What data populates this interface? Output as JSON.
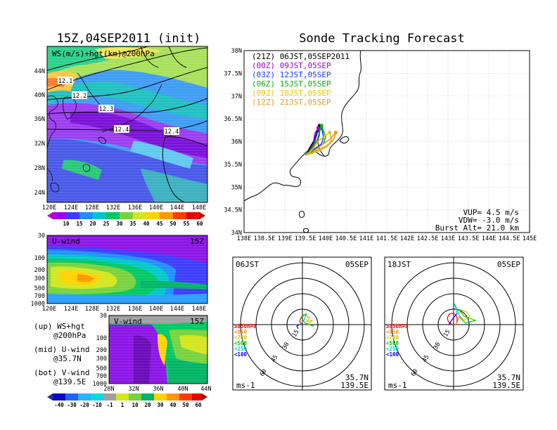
{
  "left_title": "15Z,04SEP2011 (init)",
  "right_title": "Sonde Tracking Forecast",
  "top_panel": {
    "label": "WS(m/s)+hgt(km)@200hPa",
    "ylabels": [
      "44N",
      "40N",
      "36N",
      "32N",
      "28N",
      "24N"
    ],
    "xlabels": [
      "120E",
      "124E",
      "128E",
      "132E",
      "136E",
      "140E",
      "144E",
      "148E"
    ],
    "contour_labels": [
      "12.1",
      "12.2",
      "12.3",
      "12.4",
      "12.4"
    ],
    "colorbar": [
      "10",
      "15",
      "20",
      "25",
      "30",
      "35",
      "40",
      "45",
      "50",
      "55",
      "60"
    ]
  },
  "u_panel": {
    "label": "U-wind",
    "time": "15Z",
    "ylabels": [
      "30",
      "100",
      "200",
      "300",
      "500",
      "700",
      "1000"
    ],
    "xlabels": [
      "120E",
      "124E",
      "128E",
      "132E",
      "136E",
      "140E",
      "144E",
      "148E"
    ]
  },
  "v_panel": {
    "label": "V-wind",
    "time": "15Z",
    "ylabels": [
      "30",
      "100",
      "200",
      "300",
      "500",
      "700",
      "1000"
    ],
    "xlabels": [
      "28N",
      "32N",
      "36N",
      "40N",
      "44N"
    ]
  },
  "legend": [
    {
      "a": "(up) WS+hgt",
      "b": "@200hPa"
    },
    {
      "a": "(mid) U-wind",
      "b": "@35.7N"
    },
    {
      "a": "(bot) V-wind",
      "b": "@139.5E"
    }
  ],
  "v_colorbar": [
    "-40",
    "-30",
    "-20",
    "-10",
    "-1",
    "1",
    "10",
    "20",
    "30",
    "40",
    "50",
    "60"
  ],
  "track_map": {
    "ylabels": [
      "38N",
      "37.5N",
      "37N",
      "36.5N",
      "36N",
      "35.5N",
      "35N",
      "34.5N",
      "34N"
    ],
    "xlabels": [
      "138E",
      "138.5E",
      "139E",
      "139.5E",
      "140E",
      "140.5E",
      "141E",
      "141.5E",
      "142E",
      "142.5E",
      "143E",
      "143.5E",
      "144E",
      "144.5E",
      "145E"
    ],
    "launches": [
      {
        "text": "(21Z) 06JST,05SEP2011",
        "color": "#000000"
      },
      {
        "text": "(00Z) 09JST,05SEP",
        "color": "#a000c8"
      },
      {
        "text": "(03Z) 12JST,05SEP",
        "color": "#1e3cff"
      },
      {
        "text": "(06Z) 15JST,05SEP",
        "color": "#00b400"
      },
      {
        "text": "(09Z) 18JST,05SEP",
        "color": "#e6c800"
      },
      {
        "text": "(12Z) 21JST,05SEP",
        "color": "#f09628"
      }
    ],
    "vup": "VUP= 4.5 m/s",
    "vdw": "VDW= -3.0 m/s",
    "burst": "Burst Alt= 21.0 km"
  },
  "hodographs": [
    {
      "time": "06JST",
      "date": "05SEP",
      "lat": "35.7N",
      "lon": "139.5E",
      "unit": "ms-1",
      "rings": [
        "15",
        "30",
        "45",
        "60"
      ]
    },
    {
      "time": "18JST",
      "date": "05SEP",
      "lat": "35.7N",
      "lon": "139.5E",
      "unit": "ms-1",
      "rings": [
        "15",
        "30",
        "45",
        "60"
      ]
    }
  ],
  "pressure_legend": [
    {
      "text": "≥850hPa",
      "color": "#ff0000"
    },
    {
      "text": "<850",
      "color": "#ff8c00"
    },
    {
      "text": "<700",
      "color": "#c8c800"
    },
    {
      "text": "<500",
      "color": "#00c800"
    },
    {
      "text": "<250",
      "color": "#00c8c8"
    },
    {
      "text": "<100",
      "color": "#0000ff"
    }
  ],
  "chart_data": [
    {
      "type": "heatmap",
      "title": "WS(m/s)+hgt(km)@200hPa",
      "x_range": [
        "120E",
        "149E"
      ],
      "y_range": [
        "22N",
        "47N"
      ],
      "contours": [
        12.1,
        12.2,
        12.3,
        12.4
      ],
      "colorbar": [
        10,
        15,
        20,
        25,
        30,
        35,
        40,
        45,
        50,
        55,
        60
      ]
    },
    {
      "type": "heatmap",
      "title": "U-wind",
      "x_range": [
        "120E",
        "149E"
      ],
      "y_range": [
        1000,
        30
      ]
    },
    {
      "type": "heatmap",
      "title": "V-wind",
      "x_range": [
        "28N",
        "44N"
      ],
      "y_range": [
        1000,
        30
      ],
      "colorbar": [
        -40,
        -30,
        -20,
        -10,
        -1,
        1,
        10,
        20,
        30,
        40,
        50,
        60
      ]
    },
    {
      "type": "line",
      "title": "Sonde Tracking Forecast",
      "x_range": [
        138,
        145
      ],
      "y_range": [
        34,
        38
      ],
      "series": [
        {
          "name": "(21Z) 06JST,05SEP2011",
          "x": [
            139.5,
            139.6,
            139.7,
            139.75,
            139.8,
            139.85,
            139.8,
            139.7,
            139.6,
            139.55
          ],
          "y": [
            35.7,
            35.8,
            35.95,
            36.1,
            36.25,
            36.35,
            36.2,
            36.0,
            35.85,
            35.75
          ]
        },
        {
          "name": "(00Z) 09JST,05SEP",
          "x": [
            139.5,
            139.6,
            139.7,
            139.72,
            139.75,
            139.82,
            139.85,
            139.8,
            139.7,
            139.55
          ],
          "y": [
            35.7,
            35.8,
            35.95,
            36.1,
            36.2,
            36.3,
            36.15,
            36.0,
            35.85,
            35.75
          ]
        },
        {
          "name": "(03Z) 12JST,05SEP",
          "x": [
            139.5,
            139.6,
            139.7,
            139.75,
            139.8,
            139.9,
            139.95,
            139.9,
            139.75,
            139.55
          ],
          "y": [
            35.7,
            35.78,
            35.9,
            36.05,
            36.2,
            36.3,
            36.1,
            35.95,
            35.85,
            35.75
          ]
        },
        {
          "name": "(06Z) 15JST,05SEP",
          "x": [
            139.5,
            139.6,
            139.7,
            139.8,
            139.85,
            139.9,
            140.0,
            139.95,
            139.8,
            139.6
          ],
          "y": [
            35.7,
            35.78,
            35.9,
            36.05,
            36.2,
            36.35,
            36.1,
            35.95,
            35.85,
            35.75
          ]
        },
        {
          "name": "(09Z) 18JST,05SEP",
          "x": [
            139.5,
            139.6,
            139.7,
            139.8,
            139.95,
            140.1,
            140.15,
            140.05,
            139.85,
            139.6
          ],
          "y": [
            35.7,
            35.75,
            35.85,
            36.0,
            36.1,
            36.2,
            36.05,
            35.9,
            35.8,
            35.72
          ]
        },
        {
          "name": "(12Z) 21JST,05SEP",
          "x": [
            139.5,
            139.65,
            139.8,
            139.95,
            140.1,
            140.25,
            140.2,
            140.1,
            139.9,
            139.65
          ],
          "y": [
            35.7,
            35.75,
            35.85,
            35.95,
            36.05,
            36.2,
            36.05,
            35.95,
            35.85,
            35.75
          ]
        }
      ]
    }
  ]
}
